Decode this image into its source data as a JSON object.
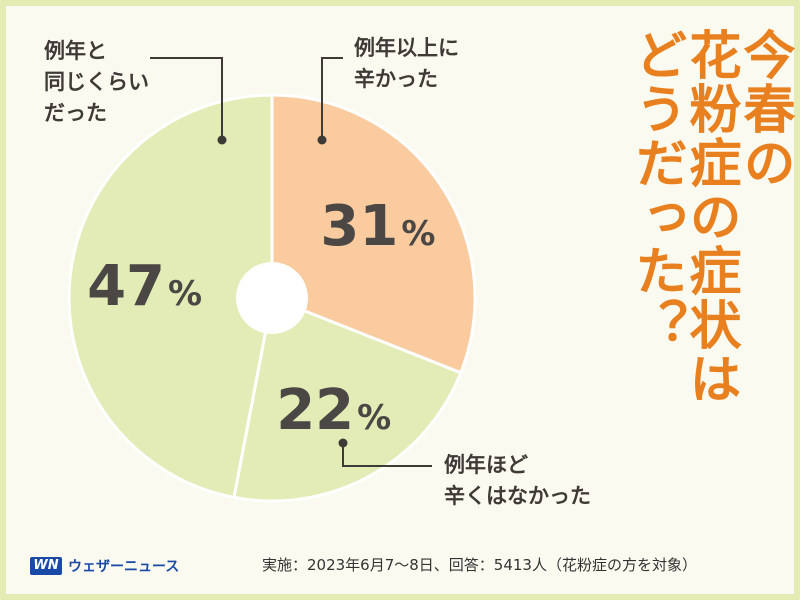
{
  "title": [
    "今春の",
    "花粉症の症状は",
    "どうだった？"
  ],
  "chart_data": {
    "type": "pie",
    "donut": true,
    "slices": [
      {
        "label": "例年以上に\n辛かった",
        "value": 31,
        "display": "31",
        "color": "#f9cb9f"
      },
      {
        "label": "例年ほど\n辛くはなかった",
        "value": 22,
        "display": "22",
        "color": "#e3ecb6"
      },
      {
        "label": "例年と\n同じくらい\nだった",
        "value": 47,
        "display": "47",
        "color": "#e3ecb6"
      }
    ],
    "unit": "%",
    "start": "12 o'clock",
    "direction": "clockwise"
  },
  "colors": {
    "title": "#e9801f",
    "value_text": "#4a4744",
    "slice_border": "#ffffff",
    "frame": "#e4ecb4",
    "background": "#fbfaf0",
    "brand": "#1a4aa8"
  },
  "footer": {
    "logo_mark": "WN",
    "brand": "ウェザーニュース",
    "note": "実施：2023年6月7～8日、回答：5413人（花粉症の方を対象）"
  }
}
